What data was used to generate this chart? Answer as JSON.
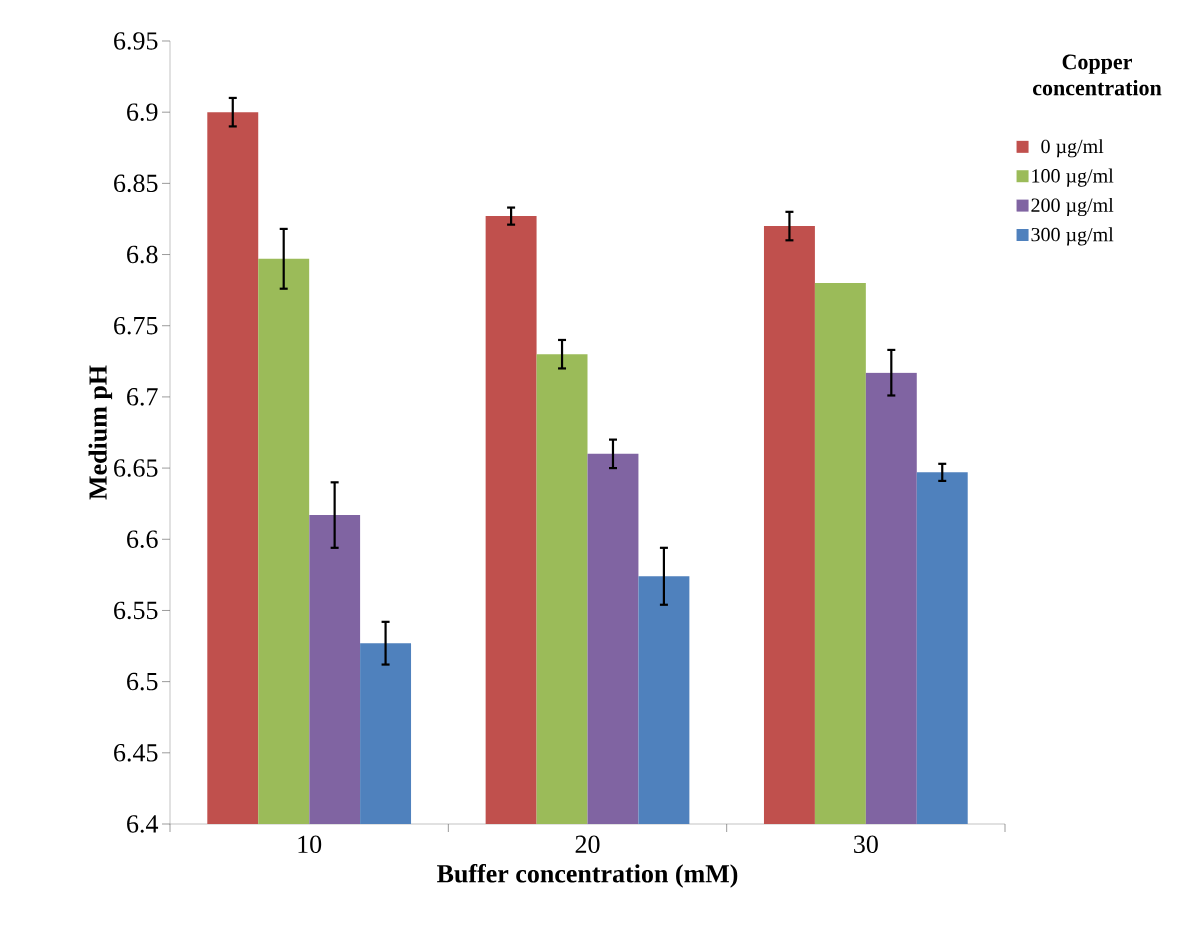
{
  "chart_data": {
    "type": "bar",
    "xlabel": "Buffer concentration (mM)",
    "ylabel": "Medium pH",
    "legend_title": "Copper concentration",
    "categories": [
      "10",
      "20",
      "30"
    ],
    "series": [
      {
        "name": "0 µg/ml",
        "color": "#c0504d",
        "values": [
          6.9,
          6.827,
          6.82
        ],
        "errors": [
          0.01,
          0.006,
          0.01
        ]
      },
      {
        "name": "100 µg/ml",
        "color": "#9bbb59",
        "values": [
          6.797,
          6.73,
          6.78
        ],
        "errors": [
          0.021,
          0.01,
          null
        ]
      },
      {
        "name": "200 µg/ml",
        "color": "#8064a2",
        "values": [
          6.617,
          6.66,
          6.717
        ],
        "errors": [
          0.023,
          0.01,
          0.016
        ]
      },
      {
        "name": "300 µg/ml",
        "color": "#4f81bd",
        "values": [
          6.527,
          6.574,
          6.647
        ],
        "errors": [
          0.015,
          0.02,
          0.006
        ]
      }
    ],
    "ylim": [
      6.4,
      6.95
    ],
    "yticks": [
      6.4,
      6.45,
      6.5,
      6.55,
      6.6,
      6.65,
      6.7,
      6.75,
      6.8,
      6.85,
      6.9,
      6.95
    ],
    "legend": "right",
    "grid": false
  }
}
